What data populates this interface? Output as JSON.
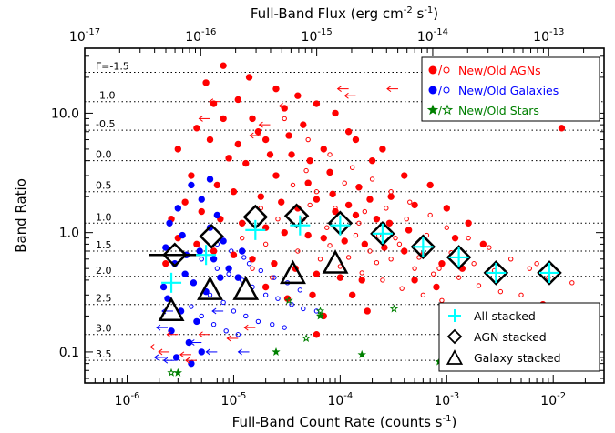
{
  "chart_data": {
    "type": "scatter",
    "xlabel": "Full-Band Count Rate (counts s",
    "xlabel_sup": "-1",
    "xlabel_close": ")",
    "top_xlabel": "Full-Band Flux (erg cm",
    "top_xlabel_sup1": "-2",
    "top_xlabel_mid": " s",
    "top_xlabel_sup2": "-1",
    "top_xlabel_close": ")",
    "ylabel": "Band Ratio",
    "xscale": "log",
    "yscale": "log",
    "xlim": [
      4e-07,
      0.03
    ],
    "ylim": [
      0.055,
      35
    ],
    "top_xlim": [
      1e-17,
      3e-13
    ],
    "x_ticks": [
      {
        "value": 1e-06,
        "mant": "10",
        "exp": "-6"
      },
      {
        "value": 1e-05,
        "mant": "10",
        "exp": "-5"
      },
      {
        "value": 0.0001,
        "mant": "10",
        "exp": "-4"
      },
      {
        "value": 0.001,
        "mant": "10",
        "exp": "-3"
      },
      {
        "value": 0.01,
        "mant": "10",
        "exp": "-2"
      }
    ],
    "top_x_ticks": [
      {
        "value": 1e-17,
        "mant": "10",
        "exp": "-17"
      },
      {
        "value": 1e-16,
        "mant": "10",
        "exp": "-16"
      },
      {
        "value": 1e-15,
        "mant": "10",
        "exp": "-15"
      },
      {
        "value": 1e-14,
        "mant": "10",
        "exp": "-14"
      },
      {
        "value": 1e-13,
        "mant": "10",
        "exp": "-13"
      }
    ],
    "y_ticks": [
      {
        "value": 10,
        "label": "10.0"
      },
      {
        "value": 1,
        "label": "1.0"
      },
      {
        "value": 0.1,
        "label": "0.1"
      }
    ],
    "gamma_lines": [
      {
        "label": "Γ=-1.5",
        "y": 22
      },
      {
        "label": "-1.0",
        "y": 12.5
      },
      {
        "label": "-0.5",
        "y": 7.2
      },
      {
        "label": "0.0",
        "y": 4.0
      },
      {
        "label": "0.5",
        "y": 2.2
      },
      {
        "label": "1.0",
        "y": 1.2
      },
      {
        "label": "1.5",
        "y": 0.7
      },
      {
        "label": "2.0",
        "y": 0.43
      },
      {
        "label": "2.5",
        "y": 0.25
      },
      {
        "label": "3.0",
        "y": 0.14
      },
      {
        "label": "3.5",
        "y": 0.085
      }
    ],
    "legend_top": [
      {
        "label": "New/Old AGNs",
        "color": "#ff0000",
        "marker": "circle"
      },
      {
        "label": "New/Old Galaxies",
        "color": "#0000ff",
        "marker": "circle"
      },
      {
        "label": "New/Old Stars",
        "color": "#008000",
        "marker": "star"
      }
    ],
    "legend_bottom": [
      {
        "label": "All stacked",
        "marker": "cross",
        "color": "#00ffff"
      },
      {
        "label": "AGN stacked",
        "marker": "diamond",
        "color": "#000000"
      },
      {
        "label": "Galaxy stacked",
        "marker": "triangle",
        "color": "#000000"
      }
    ],
    "colors": {
      "agn": "#ff0000",
      "galaxy": "#0000ff",
      "star": "#008000",
      "all_stacked": "#00ffff",
      "stacked_outline": "#000000"
    },
    "series": [
      {
        "name": "All stacked",
        "marker": "cross",
        "points": [
          {
            "x": 2.6e-06,
            "y": 0.38
          },
          {
            "x": 5.5e-06,
            "y": 0.65
          },
          {
            "x": 1.6e-05,
            "y": 1.05
          },
          {
            "x": 4.2e-05,
            "y": 1.15
          },
          {
            "x": 0.0001,
            "y": 1.15
          },
          {
            "x": 0.00025,
            "y": 0.98
          },
          {
            "x": 0.0006,
            "y": 0.76
          },
          {
            "x": 0.0013,
            "y": 0.62
          },
          {
            "x": 0.0029,
            "y": 0.46
          },
          {
            "x": 0.0092,
            "y": 0.46
          }
        ]
      },
      {
        "name": "AGN stacked",
        "marker": "diamond",
        "points": [
          {
            "x": 2.8e-06,
            "y": 0.65
          },
          {
            "x": 6.2e-06,
            "y": 0.93
          },
          {
            "x": 1.6e-05,
            "y": 1.35
          },
          {
            "x": 3.9e-05,
            "y": 1.38
          },
          {
            "x": 0.0001,
            "y": 1.2
          },
          {
            "x": 0.00025,
            "y": 0.98
          },
          {
            "x": 0.0006,
            "y": 0.76
          },
          {
            "x": 0.0013,
            "y": 0.62
          },
          {
            "x": 0.0029,
            "y": 0.46
          },
          {
            "x": 0.0092,
            "y": 0.46
          }
        ]
      },
      {
        "name": "Galaxy stacked",
        "marker": "triangle",
        "points": [
          {
            "x": 2.6e-06,
            "y": 0.22
          },
          {
            "x": 6e-06,
            "y": 0.33
          },
          {
            "x": 1.3e-05,
            "y": 0.33
          },
          {
            "x": 3.6e-05,
            "y": 0.45
          },
          {
            "x": 9e-05,
            "y": 0.55
          }
        ]
      }
    ],
    "agn_new": [
      {
        "x": 5.5e-06,
        "y": 18
      },
      {
        "x": 8e-06,
        "y": 25
      },
      {
        "x": 1.1e-05,
        "y": 13
      },
      {
        "x": 1.5e-05,
        "y": 9
      },
      {
        "x": 2e-05,
        "y": 6
      },
      {
        "x": 3e-05,
        "y": 11
      },
      {
        "x": 4.5e-05,
        "y": 8
      },
      {
        "x": 7e-05,
        "y": 5
      },
      {
        "x": 0.00012,
        "y": 7
      },
      {
        "x": 0.0002,
        "y": 4
      },
      {
        "x": 3.5e-05,
        "y": 4.5
      },
      {
        "x": 6e-06,
        "y": 6
      },
      {
        "x": 9e-06,
        "y": 4.2
      },
      {
        "x": 1.3e-05,
        "y": 3.8
      },
      {
        "x": 2.5e-05,
        "y": 3
      },
      {
        "x": 5e-05,
        "y": 2.6
      },
      {
        "x": 8e-05,
        "y": 3.2
      },
      {
        "x": 0.00015,
        "y": 2.4
      },
      {
        "x": 0.0003,
        "y": 2
      },
      {
        "x": 0.0005,
        "y": 1.7
      },
      {
        "x": 4e-06,
        "y": 3
      },
      {
        "x": 7e-06,
        "y": 2.5
      },
      {
        "x": 1e-05,
        "y": 2.2
      },
      {
        "x": 1.8e-05,
        "y": 2
      },
      {
        "x": 2.8e-05,
        "y": 1.8
      },
      {
        "x": 4e-05,
        "y": 1.6
      },
      {
        "x": 6e-05,
        "y": 1.9
      },
      {
        "x": 9e-05,
        "y": 1.5
      },
      {
        "x": 0.00014,
        "y": 1.4
      },
      {
        "x": 0.00022,
        "y": 1.3
      },
      {
        "x": 3.5e-06,
        "y": 1.8
      },
      {
        "x": 5e-06,
        "y": 1.5
      },
      {
        "x": 7.5e-06,
        "y": 1.3
      },
      {
        "x": 1.2e-05,
        "y": 1.2
      },
      {
        "x": 2e-05,
        "y": 1.1
      },
      {
        "x": 3e-05,
        "y": 1.0
      },
      {
        "x": 5e-05,
        "y": 0.95
      },
      {
        "x": 7e-05,
        "y": 0.9
      },
      {
        "x": 0.00011,
        "y": 0.85
      },
      {
        "x": 0.00017,
        "y": 0.8
      },
      {
        "x": 0.00026,
        "y": 0.75
      },
      {
        "x": 0.0004,
        "y": 0.7
      },
      {
        "x": 0.0006,
        "y": 0.65
      },
      {
        "x": 0.0009,
        "y": 0.55
      },
      {
        "x": 0.0014,
        "y": 0.5
      },
      {
        "x": 3e-06,
        "y": 0.9
      },
      {
        "x": 4.5e-06,
        "y": 0.8
      },
      {
        "x": 6.5e-06,
        "y": 0.7
      },
      {
        "x": 1e-05,
        "y": 0.65
      },
      {
        "x": 1.5e-05,
        "y": 0.6
      },
      {
        "x": 2.4e-05,
        "y": 0.55
      },
      {
        "x": 3.8e-05,
        "y": 0.5
      },
      {
        "x": 6e-05,
        "y": 0.45
      },
      {
        "x": 0.0001,
        "y": 0.42
      },
      {
        "x": 0.00016,
        "y": 0.4
      },
      {
        "x": 2.5e-05,
        "y": 16
      },
      {
        "x": 4e-05,
        "y": 14
      },
      {
        "x": 6e-05,
        "y": 12
      },
      {
        "x": 9e-05,
        "y": 10
      },
      {
        "x": 0.00014,
        "y": 6
      },
      {
        "x": 0.00025,
        "y": 5
      },
      {
        "x": 0.0004,
        "y": 3
      },
      {
        "x": 0.0007,
        "y": 2.5
      },
      {
        "x": 0.001,
        "y": 1.6
      },
      {
        "x": 0.0016,
        "y": 1.2
      },
      {
        "x": 0.0012,
        "y": 0.9
      },
      {
        "x": 0.0022,
        "y": 0.8
      },
      {
        "x": 0.0005,
        "y": 0.4
      },
      {
        "x": 0.0008,
        "y": 0.35
      },
      {
        "x": 0.012,
        "y": 7.5
      },
      {
        "x": 0.008,
        "y": 0.25
      },
      {
        "x": 2e-05,
        "y": 0.35
      },
      {
        "x": 3.2e-05,
        "y": 0.28
      },
      {
        "x": 5.5e-05,
        "y": 0.3
      },
      {
        "x": 0.00013,
        "y": 0.3
      },
      {
        "x": 1.1e-05,
        "y": 5.5
      },
      {
        "x": 1.7e-05,
        "y": 7
      },
      {
        "x": 2.2e-05,
        "y": 4.5
      },
      {
        "x": 3.3e-05,
        "y": 6.5
      },
      {
        "x": 5.2e-05,
        "y": 4
      },
      {
        "x": 8.5e-05,
        "y": 2.1
      },
      {
        "x": 0.00012,
        "y": 1.7
      },
      {
        "x": 0.00019,
        "y": 1.9
      },
      {
        "x": 0.00029,
        "y": 1.2
      },
      {
        "x": 0.00044,
        "y": 1.05
      },
      {
        "x": 6.5e-06,
        "y": 12
      },
      {
        "x": 1.4e-05,
        "y": 20
      },
      {
        "x": 8e-06,
        "y": 9
      },
      {
        "x": 4.5e-06,
        "y": 7.5
      },
      {
        "x": 3e-06,
        "y": 5
      },
      {
        "x": 7e-05,
        "y": 0.2
      },
      {
        "x": 0.00018,
        "y": 0.22
      },
      {
        "x": 6e-05,
        "y": 0.14
      },
      {
        "x": 2.3e-06,
        "y": 0.55
      },
      {
        "x": 2.6e-06,
        "y": 1.3
      }
    ],
    "agn_old": [
      {
        "x": 3e-05,
        "y": 9
      },
      {
        "x": 5e-05,
        "y": 6
      },
      {
        "x": 8e-05,
        "y": 4.5
      },
      {
        "x": 0.00013,
        "y": 3.5
      },
      {
        "x": 0.0002,
        "y": 2.8
      },
      {
        "x": 0.0003,
        "y": 2.2
      },
      {
        "x": 0.00045,
        "y": 1.8
      },
      {
        "x": 0.0007,
        "y": 1.4
      },
      {
        "x": 0.001,
        "y": 1.1
      },
      {
        "x": 0.0016,
        "y": 0.9
      },
      {
        "x": 0.0025,
        "y": 0.75
      },
      {
        "x": 0.004,
        "y": 0.6
      },
      {
        "x": 0.006,
        "y": 0.5
      },
      {
        "x": 0.009,
        "y": 0.42
      },
      {
        "x": 0.015,
        "y": 0.38
      },
      {
        "x": 6e-05,
        "y": 2.2
      },
      {
        "x": 9e-05,
        "y": 1.6
      },
      {
        "x": 0.00015,
        "y": 1.2
      },
      {
        "x": 0.00023,
        "y": 0.95
      },
      {
        "x": 0.00036,
        "y": 0.8
      },
      {
        "x": 0.00055,
        "y": 0.62
      },
      {
        "x": 0.00085,
        "y": 0.5
      },
      {
        "x": 0.0013,
        "y": 0.42
      },
      {
        "x": 0.002,
        "y": 0.36
      },
      {
        "x": 0.0032,
        "y": 0.32
      },
      {
        "x": 4e-05,
        "y": 0.7
      },
      {
        "x": 6.5e-05,
        "y": 0.6
      },
      {
        "x": 0.0001,
        "y": 0.52
      },
      {
        "x": 0.00016,
        "y": 0.46
      },
      {
        "x": 0.00025,
        "y": 0.4
      },
      {
        "x": 0.00038,
        "y": 0.34
      },
      {
        "x": 0.0006,
        "y": 0.3
      },
      {
        "x": 0.0009,
        "y": 0.27
      },
      {
        "x": 0.0014,
        "y": 0.24
      },
      {
        "x": 0.0022,
        "y": 0.22
      },
      {
        "x": 2e-05,
        "y": 0.8
      },
      {
        "x": 2.6e-05,
        "y": 1.3
      },
      {
        "x": 3.6e-05,
        "y": 2.5
      },
      {
        "x": 4.8e-05,
        "y": 3.3
      },
      {
        "x": 7.5e-05,
        "y": 1.1
      },
      {
        "x": 0.00011,
        "y": 2.6
      },
      {
        "x": 0.00017,
        "y": 1.5
      },
      {
        "x": 0.00027,
        "y": 1.6
      },
      {
        "x": 0.00042,
        "y": 1.3
      },
      {
        "x": 0.00065,
        "y": 0.95
      },
      {
        "x": 1.5e-05,
        "y": 0.5
      },
      {
        "x": 2.3e-05,
        "y": 0.42
      },
      {
        "x": 0.0003,
        "y": 0.6
      },
      {
        "x": 0.0005,
        "y": 0.5
      },
      {
        "x": 0.00075,
        "y": 0.45
      },
      {
        "x": 0.0011,
        "y": 0.68
      },
      {
        "x": 0.0018,
        "y": 0.55
      },
      {
        "x": 0.0028,
        "y": 0.48
      },
      {
        "x": 0.005,
        "y": 0.3
      },
      {
        "x": 0.007,
        "y": 0.55
      },
      {
        "x": 0.00012,
        "y": 0.62
      },
      {
        "x": 0.00019,
        "y": 0.7
      },
      {
        "x": 4.5e-05,
        "y": 1.3
      },
      {
        "x": 8e-05,
        "y": 0.78
      },
      {
        "x": 0.00014,
        "y": 0.95
      },
      {
        "x": 0.00022,
        "y": 0.56
      },
      {
        "x": 0.00033,
        "y": 0.9
      },
      {
        "x": 5.2e-05,
        "y": 1.7
      },
      {
        "x": 1.8e-05,
        "y": 1.6
      },
      {
        "x": 1.2e-05,
        "y": 0.9
      }
    ],
    "gal_new": [
      {
        "x": 2.5e-06,
        "y": 1.2
      },
      {
        "x": 3e-06,
        "y": 1.6
      },
      {
        "x": 4e-06,
        "y": 2.5
      },
      {
        "x": 5e-06,
        "y": 1.9
      },
      {
        "x": 6e-06,
        "y": 2.8
      },
      {
        "x": 7e-06,
        "y": 1.4
      },
      {
        "x": 8e-06,
        "y": 0.85
      },
      {
        "x": 2.8e-06,
        "y": 0.55
      },
      {
        "x": 3.5e-06,
        "y": 0.45
      },
      {
        "x": 4.2e-06,
        "y": 0.38
      },
      {
        "x": 5.5e-06,
        "y": 0.32
      },
      {
        "x": 2.4e-06,
        "y": 0.28
      },
      {
        "x": 3.2e-06,
        "y": 0.22
      },
      {
        "x": 4.5e-06,
        "y": 0.18
      },
      {
        "x": 2.6e-06,
        "y": 0.15
      },
      {
        "x": 3.8e-06,
        "y": 0.12
      },
      {
        "x": 5e-06,
        "y": 0.1
      },
      {
        "x": 6.5e-06,
        "y": 0.6
      },
      {
        "x": 9e-06,
        "y": 0.5
      },
      {
        "x": 1.1e-05,
        "y": 0.42
      },
      {
        "x": 2.3e-06,
        "y": 0.75
      },
      {
        "x": 3.3e-06,
        "y": 0.95
      },
      {
        "x": 6e-06,
        "y": 1.1
      },
      {
        "x": 1.2e-05,
        "y": 0.7
      },
      {
        "x": 2.2e-06,
        "y": 0.35
      },
      {
        "x": 3.6e-06,
        "y": 0.65
      },
      {
        "x": 4.8e-06,
        "y": 0.7
      },
      {
        "x": 7.5e-06,
        "y": 0.42
      },
      {
        "x": 2.9e-06,
        "y": 0.09
      },
      {
        "x": 4e-06,
        "y": 0.08
      }
    ],
    "gal_old": [
      {
        "x": 5e-06,
        "y": 0.6
      },
      {
        "x": 7e-06,
        "y": 0.5
      },
      {
        "x": 9e-06,
        "y": 0.45
      },
      {
        "x": 1.2e-05,
        "y": 0.4
      },
      {
        "x": 1.5e-05,
        "y": 0.35
      },
      {
        "x": 2e-05,
        "y": 0.3
      },
      {
        "x": 2.6e-05,
        "y": 0.28
      },
      {
        "x": 3.5e-05,
        "y": 0.25
      },
      {
        "x": 4.5e-05,
        "y": 0.23
      },
      {
        "x": 6e-05,
        "y": 0.22
      },
      {
        "x": 6e-06,
        "y": 0.3
      },
      {
        "x": 8e-06,
        "y": 0.26
      },
      {
        "x": 1e-05,
        "y": 0.22
      },
      {
        "x": 1.3e-05,
        "y": 0.2
      },
      {
        "x": 1.7e-05,
        "y": 0.18
      },
      {
        "x": 2.3e-05,
        "y": 0.17
      },
      {
        "x": 3e-05,
        "y": 0.16
      },
      {
        "x": 4e-06,
        "y": 0.24
      },
      {
        "x": 5e-06,
        "y": 0.2
      },
      {
        "x": 6.5e-06,
        "y": 0.17
      },
      {
        "x": 8.5e-06,
        "y": 0.15
      },
      {
        "x": 1.1e-05,
        "y": 0.14
      },
      {
        "x": 1.4e-05,
        "y": 0.55
      },
      {
        "x": 1.8e-05,
        "y": 0.48
      },
      {
        "x": 2.4e-05,
        "y": 0.42
      },
      {
        "x": 3.2e-05,
        "y": 0.38
      },
      {
        "x": 4.2e-05,
        "y": 0.33
      },
      {
        "x": 7e-06,
        "y": 0.8
      },
      {
        "x": 9.5e-06,
        "y": 0.7
      },
      {
        "x": 1.25e-05,
        "y": 0.62
      }
    ],
    "star_new": [
      {
        "x": 3e-06,
        "y": 0.067
      },
      {
        "x": 6.5e-05,
        "y": 0.2
      },
      {
        "x": 2.5e-05,
        "y": 0.1
      },
      {
        "x": 0.00016,
        "y": 0.095
      },
      {
        "x": 0.00085,
        "y": 0.083
      }
    ],
    "star_old": [
      {
        "x": 2.6e-06,
        "y": 0.067
      },
      {
        "x": 3.3e-05,
        "y": 0.27
      },
      {
        "x": 6.5e-05,
        "y": 0.22
      },
      {
        "x": 0.00032,
        "y": 0.23
      },
      {
        "x": 4.8e-05,
        "y": 0.13
      }
    ],
    "upper_limits": [
      {
        "x": 0.00012,
        "y": 16
      },
      {
        "x": 0.00035,
        "y": 16
      },
      {
        "x": 0.00014,
        "y": 14
      },
      {
        "x": 3.4e-05,
        "y": 11.5
      },
      {
        "x": 2.2e-05,
        "y": 8
      },
      {
        "x": 7.5e-06,
        "y": 12.5
      },
      {
        "x": 1.8e-05,
        "y": 6.5
      },
      {
        "x": 6e-06,
        "y": 9
      },
      {
        "x": 2.3e-06,
        "y": 0.09
      },
      {
        "x": 2.5e-06,
        "y": 0.1
      },
      {
        "x": 2.8e-06,
        "y": 0.085
      },
      {
        "x": 4.5e-06,
        "y": 0.085
      },
      {
        "x": 7e-06,
        "y": 0.1
      },
      {
        "x": 1.1e-05,
        "y": 0.13
      },
      {
        "x": 1.4e-05,
        "y": 0.1
      },
      {
        "x": 3e-06,
        "y": 0.14
      },
      {
        "x": 5e-06,
        "y": 0.12
      },
      {
        "x": 2.1e-06,
        "y": 0.11
      },
      {
        "x": 8e-06,
        "y": 0.22
      },
      {
        "x": 1.6e-05,
        "y": 0.16
      },
      {
        "x": 2.4e-06,
        "y": 0.16
      },
      {
        "x": 6e-06,
        "y": 0.14
      },
      {
        "x": 2.7e-06,
        "y": 0.22
      },
      {
        "x": 4e-06,
        "y": 0.095
      }
    ]
  }
}
